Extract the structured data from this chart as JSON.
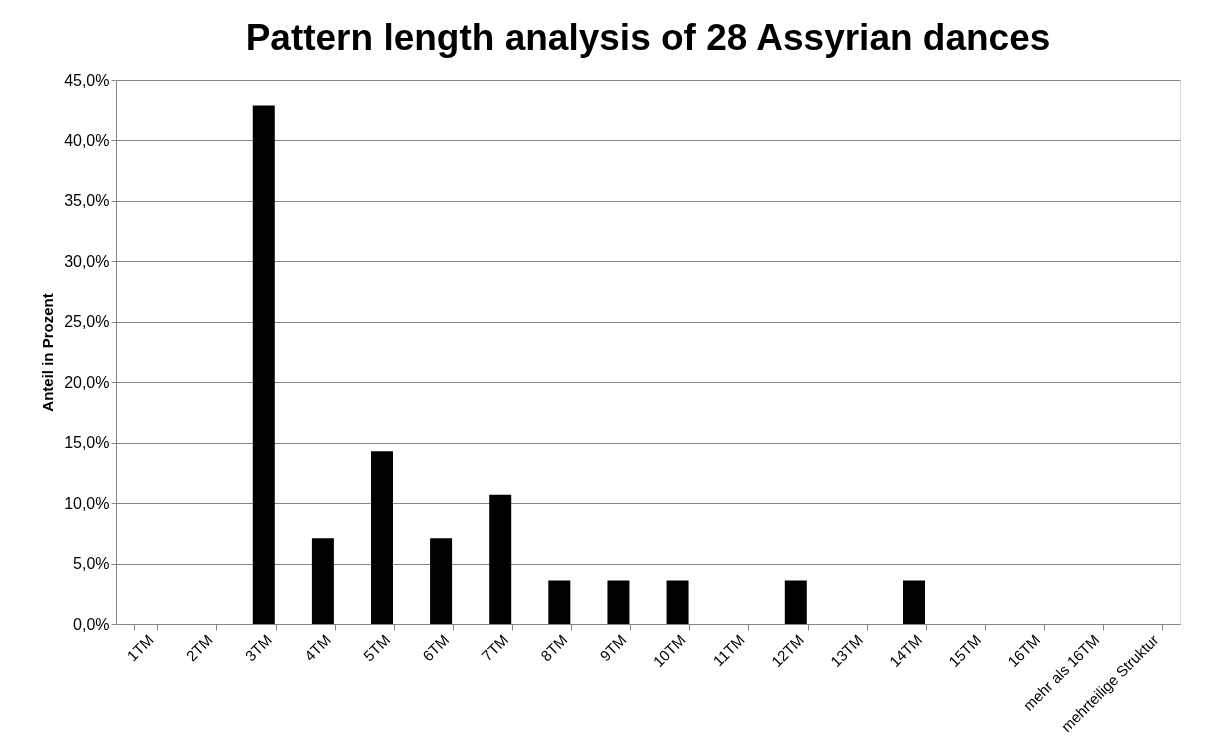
{
  "chart_data": {
    "type": "bar",
    "title": "Pattern length analysis of 28 Assyrian dances",
    "ylabel": "Anteil in Prozent",
    "categories": [
      "1TM",
      "2TM",
      "3TM",
      "4TM",
      "5TM",
      "6TM",
      "7TM",
      "8TM",
      "9TM",
      "10TM",
      "11TM",
      "12TM",
      "13TM",
      "14TM",
      "15TM",
      "16TM",
      "mehr als 16TM",
      "mehrteilige Struktur"
    ],
    "values": [
      0,
      0,
      42.9,
      7.1,
      14.3,
      7.1,
      10.7,
      3.6,
      3.6,
      3.6,
      0,
      3.6,
      0,
      3.6,
      0,
      0,
      0,
      0
    ],
    "color": "#000000",
    "ylim": [
      0,
      45
    ],
    "yticks": [
      {
        "value": 0,
        "label": "0,0%"
      },
      {
        "value": 5,
        "label": "5,0%"
      },
      {
        "value": 10,
        "label": "10,0%"
      },
      {
        "value": 15,
        "label": "15,0%"
      },
      {
        "value": 20,
        "label": "20,0%"
      },
      {
        "value": 25,
        "label": "25,0%"
      },
      {
        "value": 30,
        "label": "30,0%"
      },
      {
        "value": 35,
        "label": "35,0%"
      },
      {
        "value": 40,
        "label": "40,0%"
      },
      {
        "value": 45,
        "label": "45,0%"
      }
    ],
    "grid": "y"
  }
}
